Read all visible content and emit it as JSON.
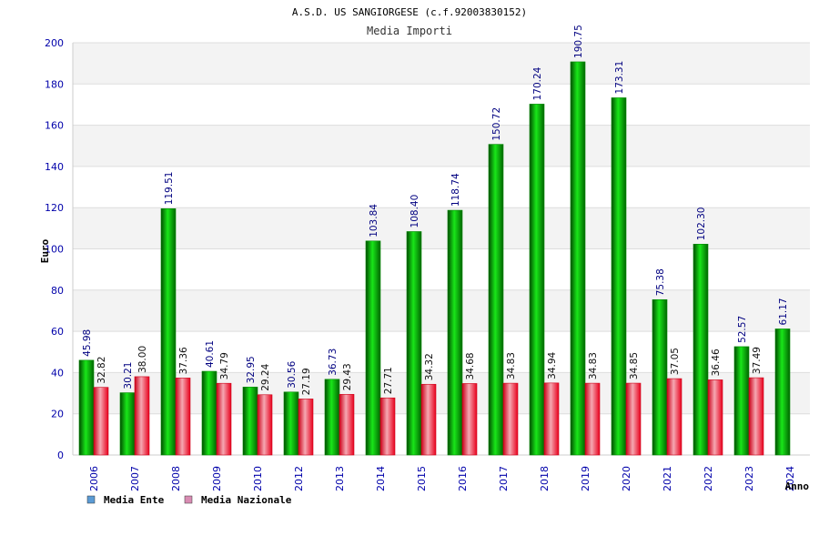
{
  "chart_data": {
    "type": "bar",
    "title": "A.S.D. US SANGIORGESE (c.f.92003830152)",
    "subtitle": "Media Importi",
    "xlabel": "Anno",
    "ylabel": "Euro",
    "ylim": [
      0,
      200
    ],
    "yticks": [
      0,
      20,
      40,
      60,
      80,
      100,
      120,
      140,
      160,
      180,
      200
    ],
    "grid": true,
    "legend_position": "bottom-left",
    "categories": [
      "2006",
      "2007",
      "2008",
      "2009",
      "2010",
      "2012",
      "2013",
      "2014",
      "2015",
      "2016",
      "2017",
      "2018",
      "2019",
      "2020",
      "2021",
      "2022",
      "2023",
      "2024"
    ],
    "series": [
      {
        "name": "Media Ente",
        "color": "#00b400",
        "legend_color": "#5b9bd5",
        "values": [
          45.98,
          30.21,
          119.51,
          40.61,
          32.95,
          30.56,
          36.73,
          103.84,
          108.4,
          118.74,
          150.72,
          170.24,
          190.75,
          173.31,
          75.38,
          102.3,
          52.57,
          61.17
        ],
        "labels": [
          "45.98",
          "30.21",
          "119.51",
          "40.61",
          "32.95",
          "30.56",
          "36.73",
          "103.84",
          "108.40",
          "118.74",
          "150.72",
          "170.24",
          "190.75",
          "173.31",
          "75.38",
          "102.30",
          "52.57",
          "61.17"
        ]
      },
      {
        "name": "Media Nazionale",
        "color": "#e8001c",
        "legend_color": "#d98cb3",
        "values": [
          32.82,
          38.0,
          37.36,
          34.79,
          29.24,
          27.19,
          29.43,
          27.71,
          34.32,
          34.68,
          34.83,
          34.94,
          34.83,
          34.85,
          37.05,
          36.46,
          37.49,
          null
        ],
        "labels": [
          "32.82",
          "38.00",
          "37.36",
          "34.79",
          "29.24",
          "27.19",
          "29.43",
          "27.71",
          "34.32",
          "34.68",
          "34.83",
          "34.94",
          "34.83",
          "34.85",
          "37.05",
          "36.46",
          "37.49",
          null
        ]
      }
    ]
  }
}
